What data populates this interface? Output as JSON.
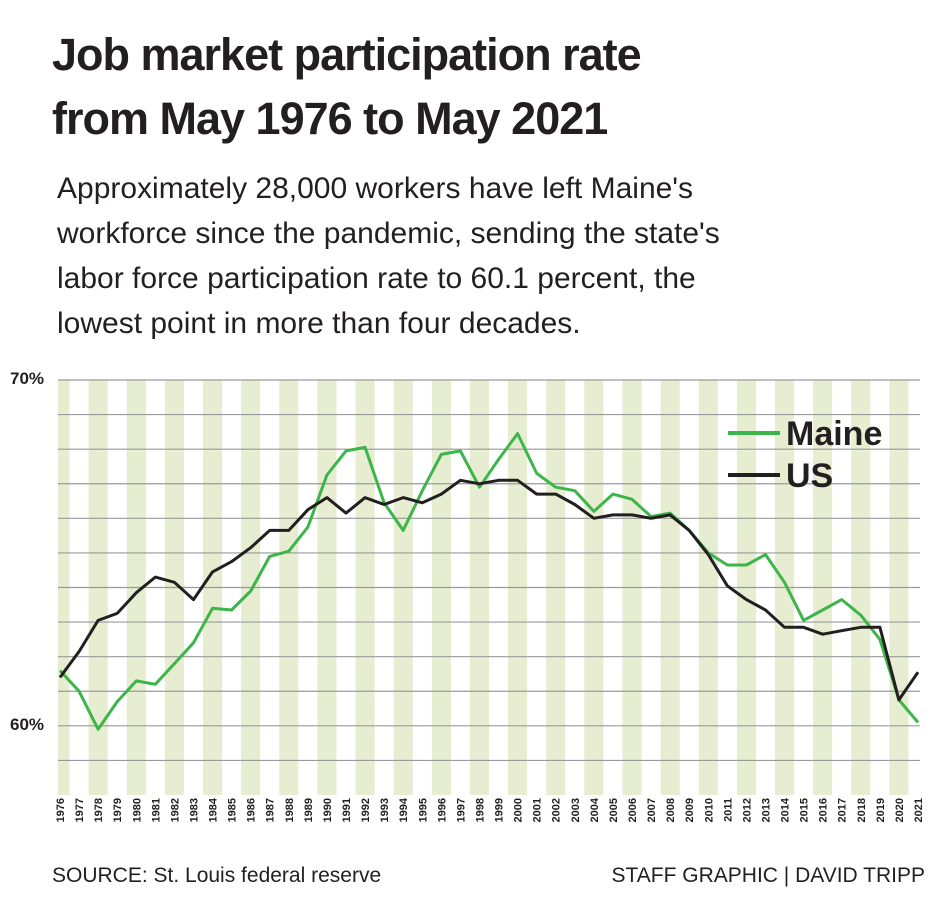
{
  "chart_data": {
    "type": "line",
    "title": [
      "Job market participation rate",
      "from May 1976 to May 2021"
    ],
    "subtitle": [
      "Approximately 28,000 workers have left Maine's",
      "workforce since the pandemic, sending the state's",
      "labor force participation rate to 60.1 percent, the",
      "lowest point in more than four decades."
    ],
    "categories": [
      "1976",
      "1977",
      "1978",
      "1979",
      "1980",
      "1981",
      "1982",
      "1983",
      "1984",
      "1985",
      "1986",
      "1987",
      "1988",
      "1989",
      "1990",
      "1991",
      "1992",
      "1993",
      "1994",
      "1995",
      "1996",
      "1997",
      "1998",
      "1999",
      "2000",
      "2001",
      "2002",
      "2003",
      "2004",
      "2005",
      "2006",
      "2007",
      "2008",
      "2009",
      "2010",
      "2011",
      "2012",
      "2013",
      "2014",
      "2015",
      "2016",
      "2017",
      "2018",
      "2019",
      "2020",
      "2021"
    ],
    "series": [
      {
        "name": "Maine",
        "color": "#3cb64a",
        "values": [
          61.6,
          61.0,
          59.9,
          60.7,
          61.3,
          61.2,
          61.8,
          62.4,
          63.4,
          63.35,
          63.9,
          64.9,
          65.05,
          65.75,
          67.25,
          67.95,
          68.05,
          66.45,
          65.65,
          66.8,
          67.85,
          67.95,
          66.9,
          67.7,
          68.45,
          67.3,
          66.9,
          66.8,
          66.2,
          66.7,
          66.55,
          66.05,
          66.15,
          65.65,
          65.0,
          64.65,
          64.65,
          64.95,
          64.15,
          63.05,
          63.35,
          63.65,
          63.2,
          62.5,
          60.75,
          60.1
        ]
      },
      {
        "name": "US",
        "color": "#231f20",
        "values": [
          61.4,
          62.15,
          63.05,
          63.25,
          63.85,
          64.3,
          64.15,
          63.65,
          64.45,
          64.75,
          65.15,
          65.65,
          65.65,
          66.25,
          66.6,
          66.15,
          66.6,
          66.4,
          66.6,
          66.45,
          66.7,
          67.1,
          67.0,
          67.1,
          67.1,
          66.7,
          66.7,
          66.4,
          66.0,
          66.1,
          66.1,
          66.0,
          66.1,
          65.65,
          64.95,
          64.05,
          63.65,
          63.35,
          62.85,
          62.85,
          62.65,
          62.75,
          62.85,
          62.85,
          60.75,
          61.55
        ]
      }
    ],
    "ylim": [
      58,
      70
    ],
    "yticks": [
      {
        "value": 60,
        "label": "60%"
      },
      {
        "value": 70,
        "label": "70%"
      }
    ],
    "minor_yticks": [
      59,
      61,
      62,
      63,
      64,
      65,
      66,
      67,
      68,
      69
    ],
    "grid": true,
    "legend": "upper right",
    "source": "SOURCE: St. Louis federal reserve",
    "credit": "STAFF GRAPHIC | DAVID TRIPP"
  }
}
